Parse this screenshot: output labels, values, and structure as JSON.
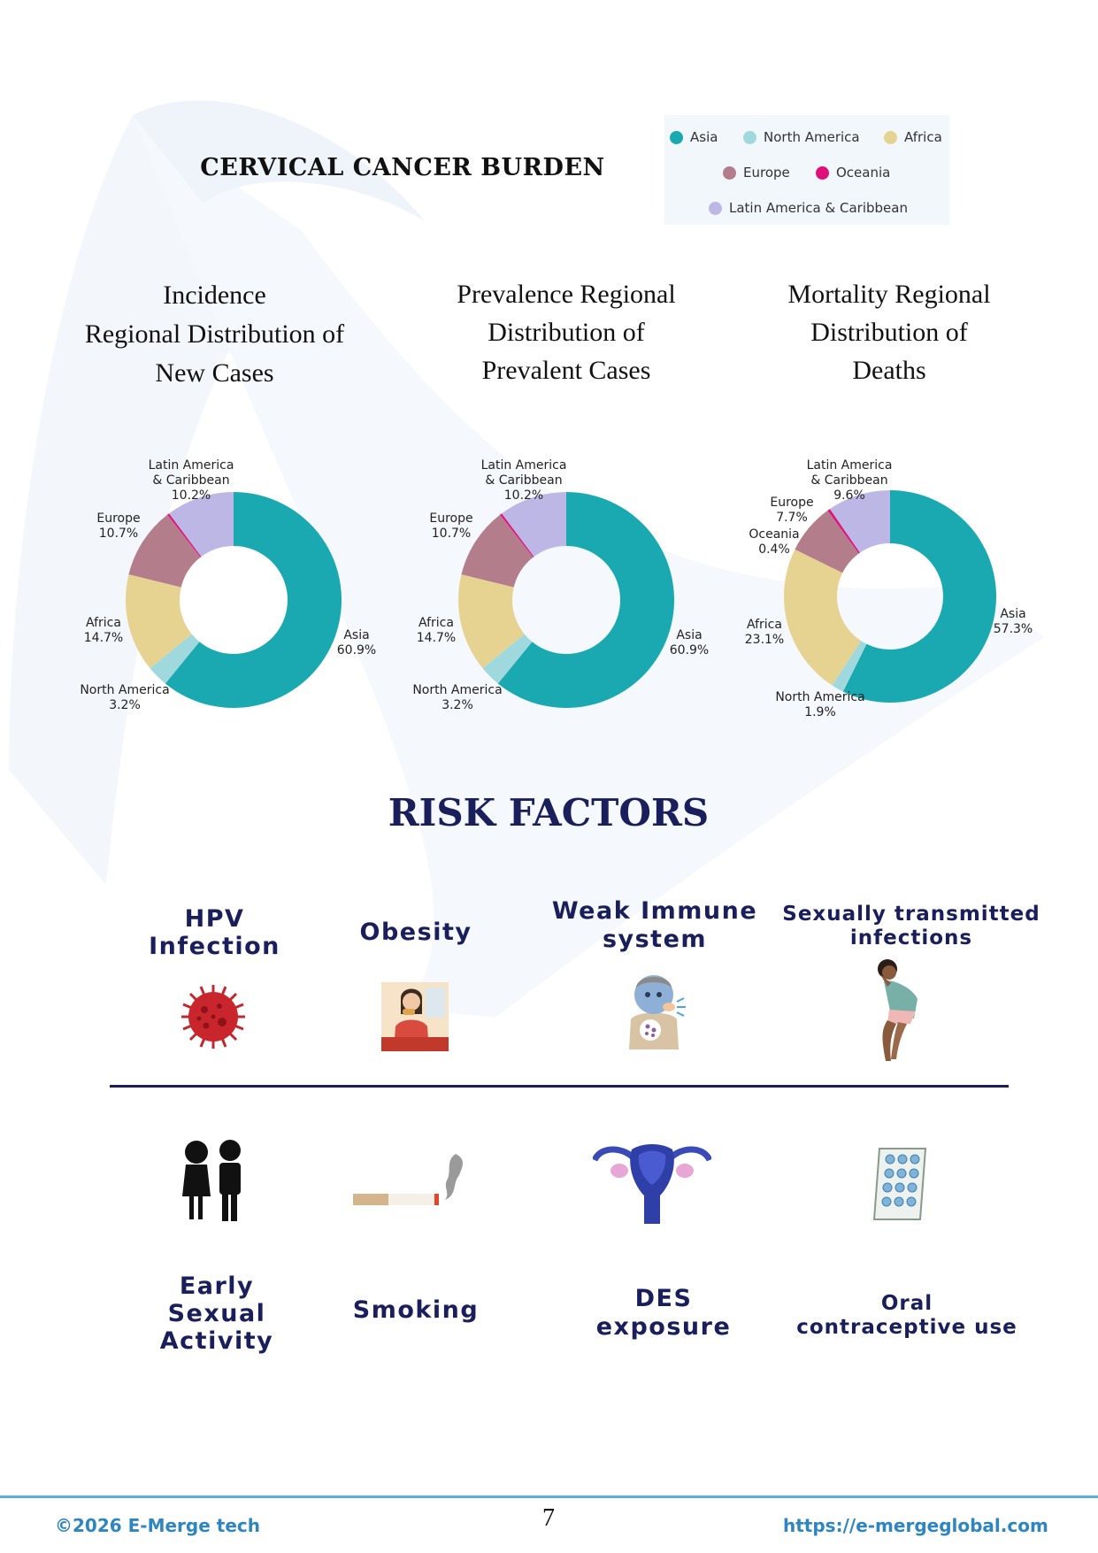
{
  "page": {
    "main_title": "CERVICAL CANCER BURDEN",
    "page_number": "7"
  },
  "legend": {
    "items": [
      {
        "label": "Asia",
        "color": "#1aa9b0"
      },
      {
        "label": "North America",
        "color": "#9fd9de"
      },
      {
        "label": "Africa",
        "color": "#e6d392"
      },
      {
        "label": "Europe",
        "color": "#b47d8c"
      },
      {
        "label": "Oceania",
        "color": "#e0107b"
      },
      {
        "label": "Latin America & Caribbean",
        "color": "#bdb7e6"
      }
    ]
  },
  "charts": {
    "incidence": {
      "title_lines": [
        "Incidence",
        "Regional Distribution of",
        "New Cases"
      ]
    },
    "prevalence": {
      "title_lines": [
        "Prevalence Regional",
        "Distribution of",
        "Prevalent Cases"
      ]
    },
    "mortality": {
      "title_lines": [
        "Mortality Regional",
        "Distribution of",
        "Deaths"
      ]
    }
  },
  "chart_data": [
    {
      "type": "pie",
      "title": "Incidence Regional Distribution of New Cases",
      "categories": [
        "Asia",
        "North America",
        "Africa",
        "Europe",
        "Oceania",
        "Latin America & Caribbean"
      ],
      "values": [
        60.9,
        3.2,
        14.7,
        10.7,
        0.3,
        10.2
      ],
      "labels": [
        {
          "name": "Asia",
          "value": "60.9%"
        },
        {
          "name": "North America",
          "value": "3.2%"
        },
        {
          "name": "Africa",
          "value": "14.7%"
        },
        {
          "name": "Europe",
          "value": "10.7%"
        },
        {
          "name": "Latin America\n& Caribbean",
          "value": "10.2%"
        }
      ]
    },
    {
      "type": "pie",
      "title": "Prevalence Regional Distribution of Prevalent Cases",
      "categories": [
        "Asia",
        "North America",
        "Africa",
        "Europe",
        "Oceania",
        "Latin America & Caribbean"
      ],
      "values": [
        60.9,
        3.2,
        14.7,
        10.7,
        0.3,
        10.2
      ],
      "labels": [
        {
          "name": "Asia",
          "value": "60.9%"
        },
        {
          "name": "North America",
          "value": "3.2%"
        },
        {
          "name": "Africa",
          "value": "14.7%"
        },
        {
          "name": "Europe",
          "value": "10.7%"
        },
        {
          "name": "Latin America\n& Caribbean",
          "value": "10.2%"
        }
      ]
    },
    {
      "type": "pie",
      "title": "Mortality Regional Distribution of Deaths",
      "categories": [
        "Asia",
        "North America",
        "Africa",
        "Europe",
        "Oceania",
        "Latin America & Caribbean"
      ],
      "values": [
        57.3,
        1.9,
        23.1,
        7.7,
        0.4,
        9.6
      ],
      "labels": [
        {
          "name": "Asia",
          "value": "57.3%"
        },
        {
          "name": "North America",
          "value": "1.9%"
        },
        {
          "name": "Africa",
          "value": "23.1%"
        },
        {
          "name": "Europe",
          "value": "7.7%"
        },
        {
          "name": "Oceania",
          "value": "0.4%"
        },
        {
          "name": "Latin America\n& Caribbean",
          "value": "9.6%"
        }
      ]
    }
  ],
  "risk": {
    "title": "RISK FACTORS",
    "top": [
      {
        "label": "HPV\nInfection",
        "icon": "virus-icon"
      },
      {
        "label": "Obesity",
        "icon": "woman-eating-icon"
      },
      {
        "label": "Weak Immune\nsystem",
        "icon": "sick-person-icon"
      },
      {
        "label": "Sexually transmitted\ninfections",
        "icon": "distressed-woman-icon"
      }
    ],
    "bottom": [
      {
        "label": "Early\nSexual\nActivity",
        "icon": "children-silhouette-icon"
      },
      {
        "label": "Smoking",
        "icon": "cigarette-icon"
      },
      {
        "label": "DES\nexposure",
        "icon": "uterus-icon"
      },
      {
        "label": "Oral\ncontraceptive use",
        "icon": "pill-pack-icon"
      }
    ]
  },
  "footer": {
    "copyright": "©2026 E-Merge tech",
    "url": "https://e-mergeglobal.com"
  }
}
